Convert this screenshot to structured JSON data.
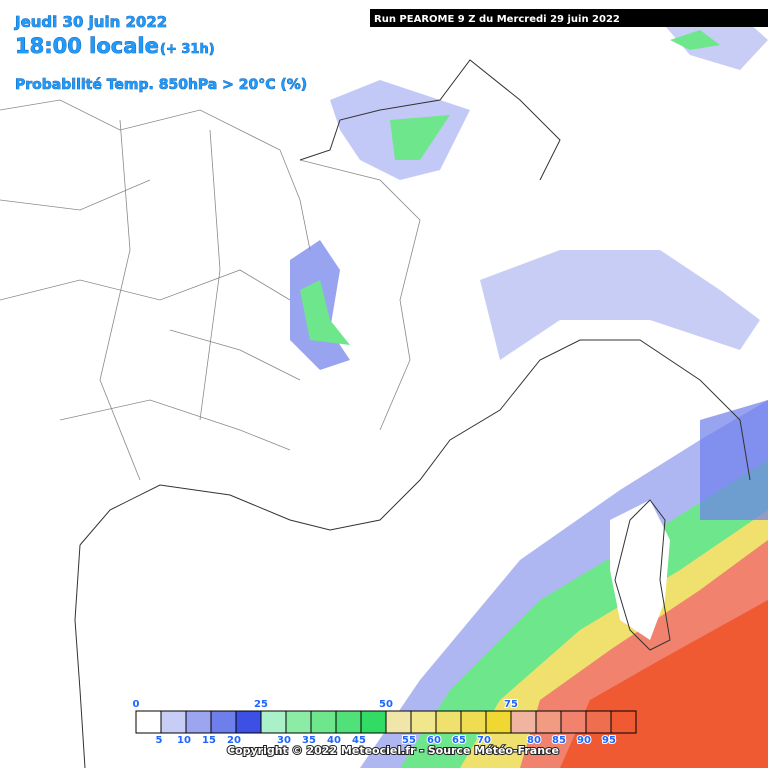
{
  "header": {
    "date": "Jeudi 30 juin 2022",
    "time": "18:00 locale",
    "offset": "(+ 31h)",
    "parameter": "Probabilité Temp. 850hPa > 20°C (%)",
    "run": "Run PEAROME 9 Z du Mercredi 29 juin 2022"
  },
  "legend": {
    "colors": [
      "#ffffff",
      "#c8cdf5",
      "#9ba5f0",
      "#6e7eeb",
      "#3c50e6",
      "#aaf0c8",
      "#8ceba5",
      "#6ee68c",
      "#50e178",
      "#32dc64",
      "#f0e6aa",
      "#f0e68c",
      "#f0e06e",
      "#f0dc50",
      "#f0d732",
      "#f0b4a0",
      "#f09b82",
      "#f0826e",
      "#f06e50",
      "#f05a32"
    ],
    "labels_above": [
      0,
      25,
      50,
      75
    ],
    "labels_below": [
      5,
      10,
      15,
      20,
      30,
      35,
      40,
      45,
      55,
      60,
      65,
      70,
      80,
      85,
      90,
      95
    ]
  },
  "footer": {
    "copyright": "Copyright © 2022 Meteociel.fr - Source Météo-France"
  }
}
